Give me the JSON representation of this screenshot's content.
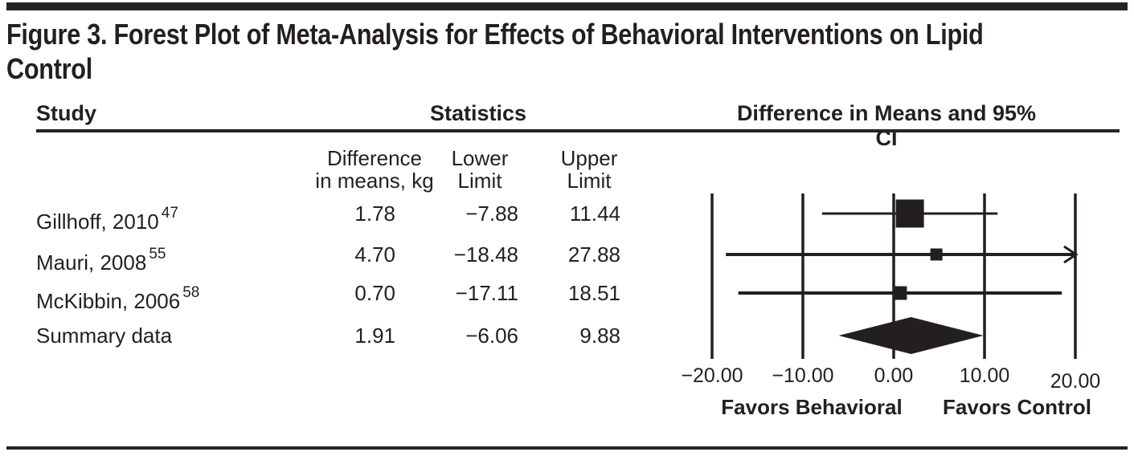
{
  "figure": {
    "title_lines": [
      "Figure 3. Forest Plot of Meta-Analysis for Effects of Behavioral Interventions on Lipid",
      "Control"
    ]
  },
  "table": {
    "col_study": "Study",
    "col_stats": "Statistics",
    "col_plot": "Difference in Means and 95% CI",
    "subheaders": {
      "diff_line1": "Difference",
      "diff_line2": "in means, kg",
      "lower_line1": "Lower",
      "lower_line2": "Limit",
      "upper_line1": "Upper",
      "upper_line2": "Limit"
    },
    "rows": [
      {
        "study": "Gillhoff, 2010",
        "ref": "47",
        "diff": "1.78",
        "lower": "−7.88",
        "upper": "11.44"
      },
      {
        "study": "Mauri, 2008",
        "ref": "55",
        "diff": "4.70",
        "lower": "−18.48",
        "upper": "27.88"
      },
      {
        "study": "McKibbin, 2006",
        "ref": "58",
        "diff": "0.70",
        "lower": "−17.11",
        "upper": "18.51"
      },
      {
        "study": "Summary data",
        "ref": "",
        "diff": "1.91",
        "lower": "−6.06",
        "upper": "9.88"
      }
    ]
  },
  "chart_data": {
    "type": "forest",
    "title": "Difference in Means and 95% CI",
    "xlim": [
      -20,
      20
    ],
    "ticks": [
      -20,
      -10,
      0,
      10,
      20
    ],
    "tick_labels": [
      "−20.00",
      "−10.00",
      "0.00",
      "10.00",
      "20.00"
    ],
    "xlabel_left": "Favors Behavioral",
    "xlabel_right": "Favors Control",
    "grid": "vertical-lines-at-ticks",
    "studies": [
      {
        "label": "Gillhoff, 2010",
        "mean": 1.78,
        "lower": -7.88,
        "upper": 11.44,
        "marker": "square",
        "marker_size": 35
      },
      {
        "label": "Mauri, 2008",
        "mean": 4.7,
        "lower": -18.48,
        "upper": 27.88,
        "marker": "square",
        "marker_size": 15
      },
      {
        "label": "McKibbin, 2006",
        "mean": 0.7,
        "lower": -17.11,
        "upper": 18.51,
        "marker": "square",
        "marker_size": 17
      },
      {
        "label": "Summary data",
        "mean": 1.91,
        "lower": -6.06,
        "upper": 9.88,
        "marker": "diamond"
      }
    ]
  },
  "colors": {
    "ink": "#231f20"
  }
}
